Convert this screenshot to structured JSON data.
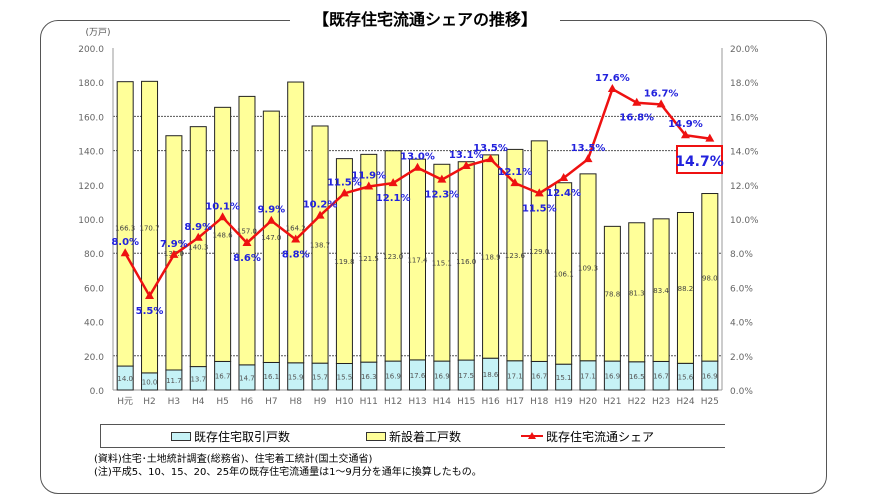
{
  "title": "【既存住宅流通シェアの推移】",
  "legend": {
    "existing": "既存住宅取引戸数",
    "new": "新設着工戸数",
    "share": "既存住宅流通シェア"
  },
  "notes": {
    "source": "(資料)住宅･土地統計調査(総務省)、住宅着工統計(国土交通省)",
    "note": "(注)平成5、10、15、20、25年の既存住宅流通量は1～9月分を通年に換算したもの。"
  },
  "colors": {
    "existing": "#c6f2f6",
    "new": "#ffff99",
    "share": "#ee1111",
    "share_label": "#2222dd"
  },
  "chart_data": {
    "type": "bar",
    "stacked": true,
    "categories": [
      "H元",
      "H2",
      "H3",
      "H4",
      "H5",
      "H6",
      "H7",
      "H8",
      "H9",
      "H10",
      "H11",
      "H12",
      "H13",
      "H14",
      "H15",
      "H16",
      "H17",
      "H18",
      "H19",
      "H20",
      "H21",
      "H22",
      "H23",
      "H24",
      "H25"
    ],
    "ylabel": "(万戸)",
    "ylim": [
      0,
      200
    ],
    "yticks": [
      "0.0",
      "20.0",
      "40.0",
      "60.0",
      "80.0",
      "100.0",
      "120.0",
      "140.0",
      "160.0",
      "180.0",
      "200.0"
    ],
    "y2lim": [
      0,
      20
    ],
    "y2ticks": [
      "0.0%",
      "2.0%",
      "4.0%",
      "6.0%",
      "8.0%",
      "10.0%",
      "12.0%",
      "14.0%",
      "16.0%",
      "18.0%",
      "20.0%"
    ],
    "grid": true,
    "legend_position": "bottom",
    "series": [
      {
        "name": "既存住宅取引戸数",
        "axis": "left",
        "values": [
          14.0,
          10.0,
          11.7,
          13.7,
          16.7,
          14.7,
          16.1,
          15.9,
          15.7,
          15.5,
          16.3,
          16.9,
          17.6,
          16.9,
          17.5,
          18.6,
          17.1,
          16.7,
          15.1,
          17.1,
          16.9,
          16.5,
          16.7,
          15.6,
          16.9
        ]
      },
      {
        "name": "新設着工戸数",
        "axis": "left",
        "values": [
          166.3,
          170.7,
          137.0,
          140.3,
          148.6,
          157.0,
          147.0,
          164.2,
          138.7,
          119.8,
          121.5,
          123.0,
          117.4,
          115.1,
          116.0,
          118.9,
          123.6,
          129.0,
          106.1,
          109.3,
          78.8,
          81.3,
          83.4,
          88.2,
          98.0
        ]
      },
      {
        "name": "既存住宅流通シェア",
        "type": "line",
        "axis": "right",
        "values": [
          8.0,
          5.5,
          7.9,
          8.9,
          10.1,
          8.6,
          9.9,
          8.8,
          10.2,
          11.5,
          11.9,
          12.1,
          13.0,
          12.3,
          13.1,
          13.5,
          12.1,
          11.5,
          12.4,
          13.5,
          17.6,
          16.8,
          16.7,
          14.9,
          14.7
        ]
      }
    ],
    "highlight": "14.7%"
  }
}
